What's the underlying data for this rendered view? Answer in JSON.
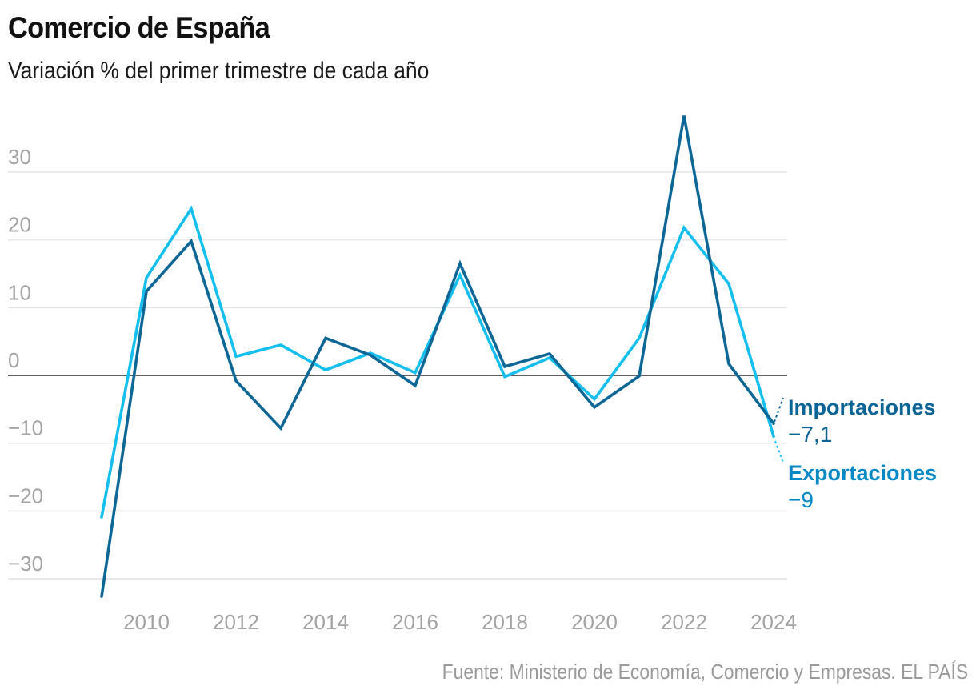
{
  "header": {
    "title": "Comercio de España",
    "subtitle": "Variación % del primer trimestre de cada año"
  },
  "footer": {
    "source": "Fuente: Ministerio de Economía, Comercio y Empresas. EL PAÍS"
  },
  "chart_data": {
    "type": "line",
    "title": "Comercio de España",
    "subtitle": "Variación % del primer trimestre de cada año",
    "xlabel": "",
    "ylabel": "",
    "x": [
      2009,
      2010,
      2011,
      2012,
      2013,
      2014,
      2015,
      2016,
      2017,
      2018,
      2019,
      2020,
      2021,
      2022,
      2023,
      2024
    ],
    "x_ticks": [
      2010,
      2012,
      2014,
      2016,
      2018,
      2020,
      2022,
      2024
    ],
    "x_tick_labels": [
      "2010",
      "2012",
      "2014",
      "2016",
      "2018",
      "2020",
      "2022",
      "2024"
    ],
    "xlim": [
      2009,
      2024
    ],
    "y_ticks": [
      30,
      20,
      10,
      0,
      -10,
      -20,
      -30
    ],
    "y_tick_labels": [
      "30",
      "20",
      "10",
      "0",
      "−10",
      "−20",
      "−30"
    ],
    "ylim": [
      -33,
      39
    ],
    "grid": true,
    "legend": "direct-labels-right",
    "series": [
      {
        "name": "Exportaciones",
        "color": "#14bff0",
        "label_color": "#0589c5",
        "last_value_label": "−9",
        "values": [
          -20.9,
          14.4,
          24.6,
          2.8,
          4.5,
          0.8,
          3.3,
          0.4,
          14.8,
          -0.2,
          2.6,
          -3.5,
          5.5,
          21.8,
          13.5,
          -9.0
        ]
      },
      {
        "name": "Importaciones",
        "color": "#0d6796",
        "label_color": "#0a6496",
        "last_value_label": "−7,1",
        "values": [
          -32.6,
          12.4,
          19.8,
          -0.8,
          -7.8,
          5.5,
          3.0,
          -1.5,
          16.5,
          1.3,
          3.2,
          -4.7,
          -0.1,
          38.3,
          1.7,
          -7.1
        ]
      }
    ]
  }
}
